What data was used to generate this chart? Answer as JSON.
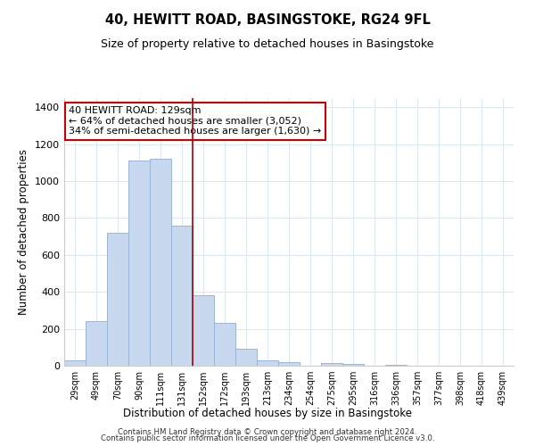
{
  "title": "40, HEWITT ROAD, BASINGSTOKE, RG24 9FL",
  "subtitle": "Size of property relative to detached houses in Basingstoke",
  "xlabel": "Distribution of detached houses by size in Basingstoke",
  "ylabel": "Number of detached properties",
  "bar_labels": [
    "29sqm",
    "49sqm",
    "70sqm",
    "90sqm",
    "111sqm",
    "131sqm",
    "152sqm",
    "172sqm",
    "193sqm",
    "213sqm",
    "234sqm",
    "254sqm",
    "275sqm",
    "295sqm",
    "316sqm",
    "336sqm",
    "357sqm",
    "377sqm",
    "398sqm",
    "418sqm",
    "439sqm"
  ],
  "bar_values": [
    30,
    240,
    720,
    1110,
    1120,
    760,
    380,
    230,
    90,
    30,
    20,
    0,
    15,
    10,
    0,
    5,
    0,
    0,
    0,
    0,
    0
  ],
  "bar_color": "#c8d9ef",
  "bar_edge_color": "#9ab5d5",
  "vline_x_index": 5,
  "vline_color": "#aa0000",
  "annotation_title": "40 HEWITT ROAD: 129sqm",
  "annotation_line1": "← 64% of detached houses are smaller (3,052)",
  "annotation_line2": "34% of semi-detached houses are larger (1,630) →",
  "annotation_box_color": "#ffffff",
  "annotation_box_edge": "#cc0000",
  "ylim": [
    0,
    1450
  ],
  "yticks": [
    0,
    200,
    400,
    600,
    800,
    1000,
    1200,
    1400
  ],
  "footer_line1": "Contains HM Land Registry data © Crown copyright and database right 2024.",
  "footer_line2": "Contains public sector information licensed under the Open Government Licence v3.0.",
  "background_color": "#ffffff",
  "grid_color": "#dde8f5"
}
